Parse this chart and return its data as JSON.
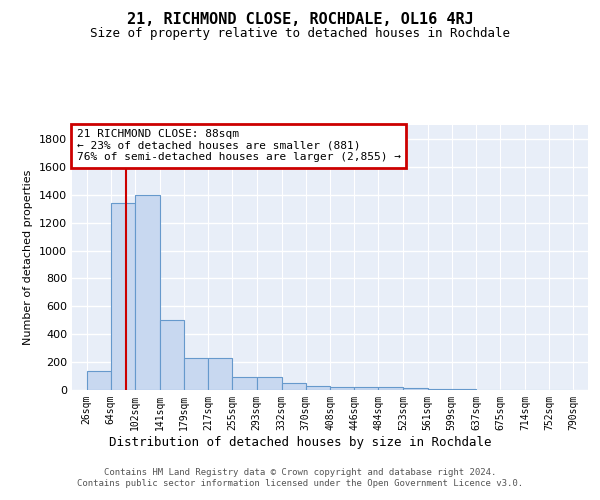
{
  "title": "21, RICHMOND CLOSE, ROCHDALE, OL16 4RJ",
  "subtitle": "Size of property relative to detached houses in Rochdale",
  "xlabel": "Distribution of detached houses by size in Rochdale",
  "ylabel": "Number of detached properties",
  "bin_edges": [
    26,
    64,
    102,
    141,
    179,
    217,
    255,
    293,
    332,
    370,
    408,
    446,
    484,
    523,
    561,
    599,
    637,
    675,
    714,
    752,
    790
  ],
  "bar_heights": [
    135,
    1340,
    1395,
    500,
    230,
    230,
    90,
    90,
    50,
    30,
    20,
    20,
    20,
    15,
    10,
    8,
    0,
    0,
    0,
    0
  ],
  "bar_color": "#c8d8f0",
  "bar_edge_color": "#6699cc",
  "red_line_x": 88,
  "annotation_line1": "21 RICHMOND CLOSE: 88sqm",
  "annotation_line2": "← 23% of detached houses are smaller (881)",
  "annotation_line3": "76% of semi-detached houses are larger (2,855) →",
  "annotation_box_color": "#cc0000",
  "ylim": [
    0,
    1900
  ],
  "yticks": [
    0,
    200,
    400,
    600,
    800,
    1000,
    1200,
    1400,
    1600,
    1800
  ],
  "tick_labels": [
    "26sqm",
    "64sqm",
    "102sqm",
    "141sqm",
    "179sqm",
    "217sqm",
    "255sqm",
    "293sqm",
    "332sqm",
    "370sqm",
    "408sqm",
    "446sqm",
    "484sqm",
    "523sqm",
    "561sqm",
    "599sqm",
    "637sqm",
    "675sqm",
    "714sqm",
    "752sqm",
    "790sqm"
  ],
  "bg_color": "#e8eef8",
  "grid_color": "#d0d8e8",
  "footer1": "Contains HM Land Registry data © Crown copyright and database right 2024.",
  "footer2": "Contains public sector information licensed under the Open Government Licence v3.0."
}
